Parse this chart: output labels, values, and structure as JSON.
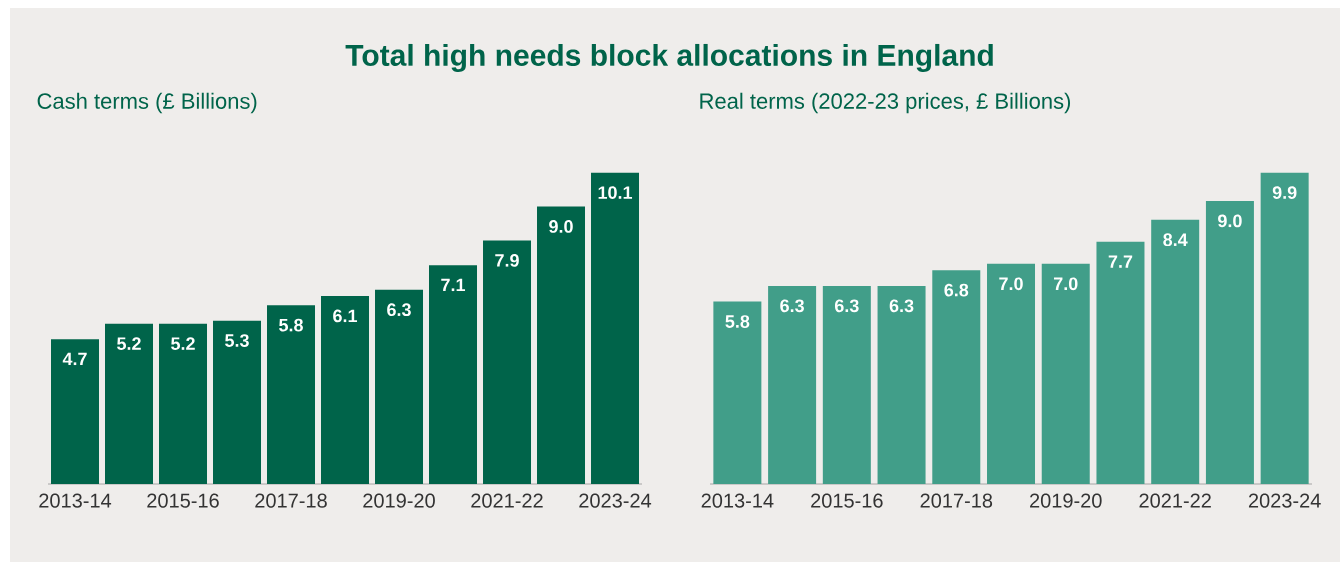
{
  "chart_data": [
    {
      "type": "bar",
      "title": "Total high needs block allocations in England",
      "subtitle": "Cash terms (£ Billions)",
      "categories": [
        "2013-14",
        null,
        "2015-16",
        null,
        "2017-18",
        null,
        "2019-20",
        null,
        "2021-22",
        null,
        "2023-24"
      ],
      "values": [
        4.7,
        5.2,
        5.2,
        5.3,
        5.8,
        6.1,
        6.3,
        7.1,
        7.9,
        9.0,
        10.1
      ],
      "value_labels": [
        "4.7",
        "5.2",
        "5.2",
        "5.3",
        "5.8",
        "6.1",
        "6.3",
        "7.1",
        "7.9",
        "9.0",
        "10.1"
      ],
      "color": "#00644a"
    },
    {
      "type": "bar",
      "subtitle": "Real terms (2022-23 prices, £ Billions)",
      "categories": [
        "2013-14",
        null,
        "2015-16",
        null,
        "2017-18",
        null,
        "2019-20",
        null,
        "2021-22",
        null,
        "2023-24"
      ],
      "values": [
        5.8,
        6.3,
        6.3,
        6.3,
        6.8,
        7.0,
        7.0,
        7.7,
        8.4,
        9.0,
        9.9
      ],
      "value_labels": [
        "5.8",
        "6.3",
        "6.3",
        "6.3",
        "6.8",
        "7.0",
        "7.0",
        "7.7",
        "8.4",
        "9.0",
        "9.9"
      ],
      "color": "#419e89"
    }
  ]
}
